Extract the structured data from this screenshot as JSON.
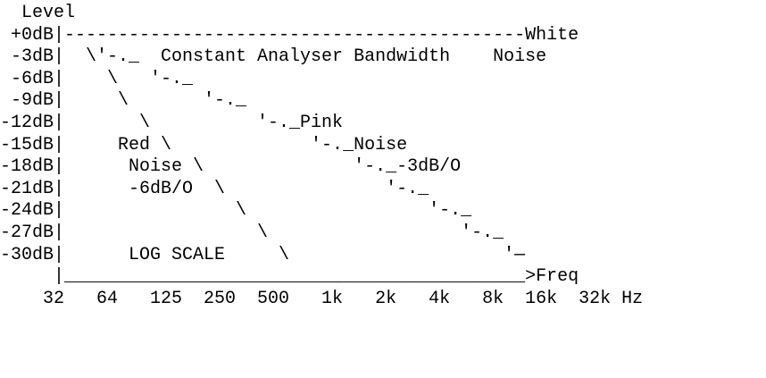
{
  "diagram": {
    "type": "ascii-art",
    "lines": [
      "  Level",
      " +0dB|-------------------------------------------White",
      " -3dB|  \\'-._  Constant Analyser Bandwidth    Noise",
      " -6dB|    \\   '-._",
      " -9dB|     \\       '-._",
      "-12dB|       \\          '-._Pink",
      "-15dB|     Red \\             '-._Noise",
      "-18dB|      Noise \\              '-._-3dB/O",
      "-21dB|      -6dB/O  \\               '-._",
      "-24dB|                \\                 '-._",
      "-27dB|                  \\                  '-._",
      "-30dB|      LOG SCALE     \\                    '—",
      "     |___________________________________________>Freq",
      "    32   64   125  250  500   1k   2k   4k   8k  16k  32k Hz"
    ]
  }
}
